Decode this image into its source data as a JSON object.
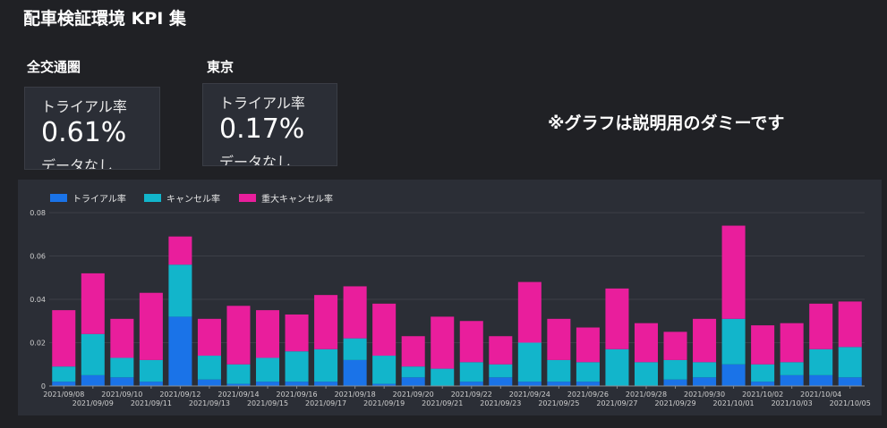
{
  "header": {
    "title": "配車検証環境 KPI 集"
  },
  "kpis": [
    {
      "region": "全交通圏",
      "label": "トライアル率",
      "value": "0.61%",
      "sub": "データなし"
    },
    {
      "region": "東京",
      "label": "トライアル率",
      "value": "0.17%",
      "sub": "データなし"
    }
  ],
  "note": "※グラフは説明用のダミーです",
  "colors": {
    "trial": "#1a73e8",
    "cancel": "#12b5cb",
    "major_cancel": "#e91e9c",
    "background": "#202125",
    "panel": "#2b2e36"
  },
  "chart_data": {
    "type": "bar",
    "stacked": true,
    "legend_position": "top-left",
    "grid": true,
    "ylim": [
      0,
      0.08
    ],
    "yticks": [
      "0",
      "0.02",
      "0.04",
      "0.06",
      "0.08"
    ],
    "categories": [
      "2021/09/08",
      "2021/09/09",
      "2021/09/10",
      "2021/09/11",
      "2021/09/12",
      "2021/09/13",
      "2021/09/14",
      "2021/09/15",
      "2021/09/16",
      "2021/09/17",
      "2021/09/18",
      "2021/09/19",
      "2021/09/20",
      "2021/09/21",
      "2021/09/22",
      "2021/09/23",
      "2021/09/24",
      "2021/09/25",
      "2021/09/26",
      "2021/09/27",
      "2021/09/28",
      "2021/09/29",
      "2021/09/30",
      "2021/10/01",
      "2021/10/02",
      "2021/10/03",
      "2021/10/04",
      "2021/10/05"
    ],
    "series": [
      {
        "name": "トライアル率",
        "values": [
          0.002,
          0.005,
          0.004,
          0.002,
          0.032,
          0.003,
          0.001,
          0.002,
          0.002,
          0.002,
          0.012,
          0.001,
          0.004,
          0.0,
          0.002,
          0.004,
          0.002,
          0.002,
          0.002,
          0.0,
          0.0,
          0.003,
          0.004,
          0.01,
          0.002,
          0.005,
          0.005,
          0.004
        ]
      },
      {
        "name": "キャンセル率",
        "values": [
          0.007,
          0.019,
          0.009,
          0.01,
          0.024,
          0.011,
          0.009,
          0.011,
          0.014,
          0.015,
          0.01,
          0.013,
          0.005,
          0.008,
          0.009,
          0.006,
          0.018,
          0.01,
          0.009,
          0.017,
          0.011,
          0.009,
          0.007,
          0.021,
          0.008,
          0.006,
          0.012,
          0.014
        ]
      },
      {
        "name": "重大キャンセル率",
        "values": [
          0.026,
          0.028,
          0.018,
          0.031,
          0.013,
          0.017,
          0.027,
          0.022,
          0.017,
          0.025,
          0.024,
          0.024,
          0.014,
          0.024,
          0.019,
          0.013,
          0.028,
          0.019,
          0.016,
          0.028,
          0.018,
          0.013,
          0.02,
          0.043,
          0.018,
          0.018,
          0.021,
          0.021
        ]
      }
    ]
  }
}
